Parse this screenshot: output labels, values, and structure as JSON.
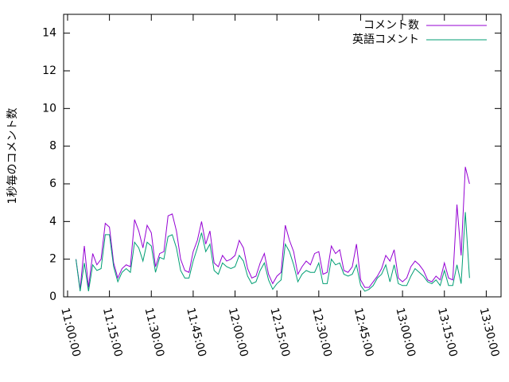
{
  "chart_data": {
    "type": "line",
    "ylabel": "1秒毎のコメント数",
    "xlim": [
      "10:58:35",
      "13:35:18"
    ],
    "xticks": [
      "11:00:00",
      "11:15:00",
      "11:30:00",
      "11:45:00",
      "12:00:00",
      "12:15:00",
      "12:30:00",
      "12:45:00",
      "13:00:00",
      "13:15:00",
      "13:30:00"
    ],
    "ylim": [
      0,
      15
    ],
    "yticks": [
      0,
      2,
      4,
      6,
      8,
      10,
      12,
      14
    ],
    "legend": "top-right",
    "x": [
      "11:03:00",
      "11:04:30",
      "11:06:00",
      "11:07:30",
      "11:09:00",
      "11:10:30",
      "11:12:00",
      "11:13:30",
      "11:15:00",
      "11:16:30",
      "11:18:00",
      "11:19:30",
      "11:21:00",
      "11:22:30",
      "11:24:00",
      "11:25:30",
      "11:27:00",
      "11:28:30",
      "11:30:00",
      "11:31:30",
      "11:33:00",
      "11:34:30",
      "11:36:00",
      "11:37:30",
      "11:39:00",
      "11:40:30",
      "11:42:00",
      "11:43:30",
      "11:45:00",
      "11:46:30",
      "11:48:00",
      "11:49:30",
      "11:51:00",
      "11:52:30",
      "11:54:00",
      "11:55:30",
      "11:57:00",
      "11:58:30",
      "12:00:00",
      "12:01:30",
      "12:03:00",
      "12:04:30",
      "12:06:00",
      "12:07:30",
      "12:09:00",
      "12:10:30",
      "12:12:00",
      "12:13:30",
      "12:15:00",
      "12:16:30",
      "12:18:00",
      "12:19:30",
      "12:21:00",
      "12:22:30",
      "12:24:00",
      "12:25:30",
      "12:27:00",
      "12:28:30",
      "12:30:00",
      "12:31:30",
      "12:33:00",
      "12:34:30",
      "12:36:00",
      "12:37:30",
      "12:39:00",
      "12:40:30",
      "12:42:00",
      "12:43:30",
      "12:45:00",
      "12:46:30",
      "12:48:00",
      "12:49:30",
      "12:51:00",
      "12:52:30",
      "12:54:00",
      "12:55:30",
      "12:57:00",
      "12:58:30",
      "13:00:00",
      "13:01:30",
      "13:03:00",
      "13:04:30",
      "13:06:00",
      "13:07:30",
      "13:09:00",
      "13:10:30",
      "13:12:00",
      "13:13:30",
      "13:15:00",
      "13:16:30",
      "13:18:00",
      "13:19:30",
      "13:21:00",
      "13:22:30",
      "13:24:00"
    ],
    "series": [
      {
        "name": "コメント数",
        "color": "#9400d3",
        "values": [
          2.0,
          0.4,
          2.7,
          0.5,
          2.3,
          1.7,
          2.0,
          3.9,
          3.7,
          1.8,
          1.0,
          1.5,
          1.7,
          1.6,
          4.1,
          3.5,
          2.6,
          3.8,
          3.4,
          1.6,
          2.3,
          2.4,
          4.3,
          4.4,
          3.5,
          2.0,
          1.4,
          1.3,
          2.4,
          3.0,
          4.0,
          2.8,
          3.5,
          1.8,
          1.6,
          2.2,
          1.9,
          2.0,
          2.2,
          3.0,
          2.6,
          1.5,
          1.0,
          1.1,
          1.8,
          2.3,
          1.2,
          0.7,
          1.1,
          1.3,
          3.8,
          3.0,
          2.4,
          1.2,
          1.6,
          1.9,
          1.7,
          2.3,
          2.4,
          1.2,
          1.3,
          2.7,
          2.3,
          2.5,
          1.4,
          1.3,
          1.6,
          2.8,
          0.9,
          0.5,
          0.5,
          0.8,
          1.1,
          1.5,
          2.2,
          1.9,
          2.5,
          1.0,
          0.8,
          1.0,
          1.6,
          1.9,
          1.7,
          1.4,
          0.9,
          0.8,
          1.1,
          0.9,
          1.8,
          1.0,
          0.9,
          4.9,
          2.2,
          6.9,
          6.0
        ]
      },
      {
        "name": "英語コメント",
        "color": "#009e73",
        "values": [
          2.0,
          0.3,
          1.8,
          0.3,
          1.7,
          1.4,
          1.5,
          3.3,
          3.3,
          1.6,
          0.8,
          1.3,
          1.5,
          1.3,
          2.9,
          2.6,
          1.9,
          2.9,
          2.7,
          1.3,
          2.1,
          2.0,
          3.2,
          3.3,
          2.6,
          1.4,
          1.0,
          1.0,
          1.9,
          2.6,
          3.4,
          2.4,
          2.8,
          1.4,
          1.2,
          1.8,
          1.6,
          1.5,
          1.6,
          2.2,
          1.9,
          1.1,
          0.7,
          0.8,
          1.4,
          1.8,
          0.9,
          0.4,
          0.7,
          0.9,
          2.8,
          2.4,
          1.7,
          0.8,
          1.2,
          1.4,
          1.3,
          1.3,
          1.8,
          0.7,
          0.7,
          2.0,
          1.7,
          1.8,
          1.2,
          1.1,
          1.2,
          1.7,
          0.6,
          0.3,
          0.4,
          0.6,
          1.0,
          1.2,
          1.7,
          0.8,
          1.7,
          0.7,
          0.6,
          0.6,
          1.1,
          1.5,
          1.3,
          1.1,
          0.8,
          0.7,
          0.9,
          0.6,
          1.4,
          0.6,
          0.6,
          1.7,
          0.7,
          4.5,
          1.0
        ]
      }
    ]
  }
}
